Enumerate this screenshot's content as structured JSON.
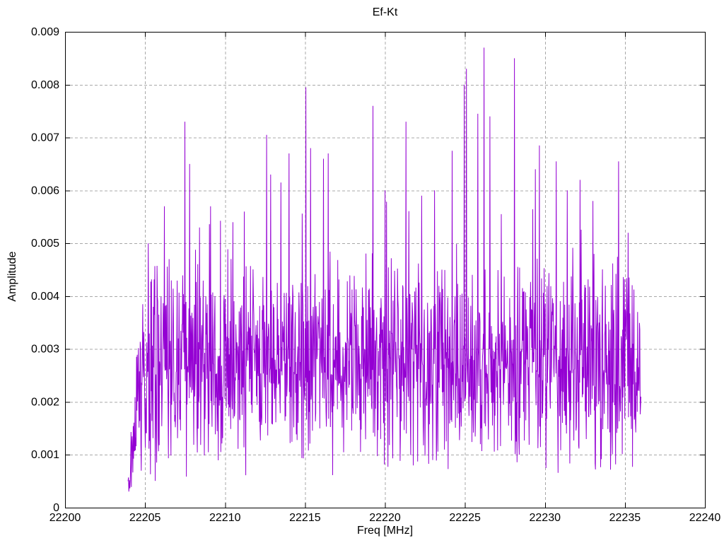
{
  "window": {
    "background": "#ffffff"
  },
  "chart_data": {
    "type": "line",
    "title": "Ef-Kt",
    "xlabel": "Freq [MHz]",
    "ylabel": "Amplitude",
    "xlim": [
      22200,
      22240
    ],
    "ylim": [
      0,
      0.009
    ],
    "x_ticks": {
      "values": [
        22200,
        22205,
        22210,
        22215,
        22220,
        22225,
        22230,
        22235,
        22240
      ],
      "labels": [
        "22200",
        "22205",
        "22210",
        "22215",
        "22220",
        "22225",
        "22230",
        "22235",
        "22240"
      ]
    },
    "y_ticks": {
      "values": [
        0,
        0.001,
        0.002,
        0.003,
        0.004,
        0.005,
        0.006,
        0.007,
        0.008,
        0.009
      ],
      "labels": [
        "0",
        "0.001",
        "0.002",
        "0.003",
        "0.004",
        "0.005",
        "0.006",
        "0.007",
        "0.008",
        "0.009"
      ]
    },
    "grid": {
      "show": true,
      "style": "dashed",
      "color": "#a8a8a8"
    },
    "border_color": "#000000",
    "text_color": "#000000",
    "legend": "none",
    "series": [
      {
        "name": "Ef-Kt",
        "color": "#9400d3",
        "x_start": 22203.94,
        "x_end": 22236.0,
        "n_points": 1400,
        "noise_model": {
          "seed": 20231,
          "base_min": 0.0005,
          "base_span": 0.0044,
          "spike_prob": 0.05,
          "spike_scale": 0.0012,
          "soft_clip": 0.0058,
          "ramp_mhz": 1.0,
          "ramp_floor": 0.2,
          "first_value": 0.0005,
          "last_value": 0.0021
        },
        "peaks": [
          [
            22205.2,
            0.005
          ],
          [
            22206.2,
            0.0057
          ],
          [
            22206.5,
            0.0047
          ],
          [
            22207.5,
            0.0073
          ],
          [
            22207.8,
            0.0065
          ],
          [
            22208.4,
            0.0053
          ],
          [
            22209.1,
            0.0057
          ],
          [
            22210.5,
            0.0054
          ],
          [
            22211.2,
            0.0056
          ],
          [
            22212.6,
            0.00705
          ],
          [
            22212.85,
            0.0063
          ],
          [
            22213.5,
            0.00615
          ],
          [
            22214.0,
            0.0067
          ],
          [
            22215.05,
            0.00795
          ],
          [
            22215.35,
            0.0068
          ],
          [
            22216.15,
            0.0066
          ],
          [
            22216.45,
            0.0067
          ],
          [
            22219.25,
            0.0076
          ],
          [
            22220.0,
            0.006
          ],
          [
            22221.3,
            0.0073
          ],
          [
            22222.3,
            0.0059
          ],
          [
            22223.1,
            0.006
          ],
          [
            22224.2,
            0.00675
          ],
          [
            22224.95,
            0.008
          ],
          [
            22225.1,
            0.0083
          ],
          [
            22225.8,
            0.00745
          ],
          [
            22226.2,
            0.0087
          ],
          [
            22226.55,
            0.0074
          ],
          [
            22228.1,
            0.0085
          ],
          [
            22229.4,
            0.0064
          ],
          [
            22229.65,
            0.00685
          ],
          [
            22230.7,
            0.00655
          ],
          [
            22231.4,
            0.006
          ],
          [
            22232.2,
            0.0062
          ],
          [
            22233.0,
            0.0058
          ],
          [
            22234.6,
            0.00655
          ],
          [
            22235.2,
            0.0052
          ],
          [
            22235.8,
            0.0037
          ]
        ]
      }
    ]
  }
}
